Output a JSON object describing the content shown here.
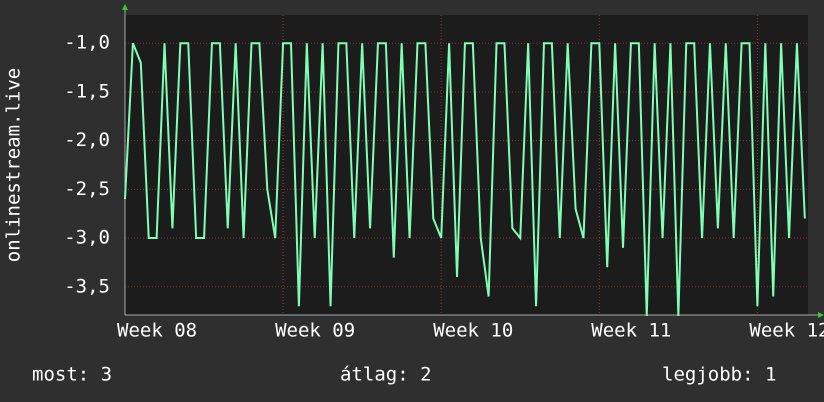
{
  "chart_data": {
    "type": "line",
    "y_label": "onlinestream.live",
    "x": [
      8,
      8.05,
      8.1,
      8.15,
      8.2,
      8.25,
      8.3,
      8.35,
      8.4,
      8.45,
      8.5,
      8.55,
      8.6,
      8.65,
      8.7,
      8.75,
      8.8,
      8.85,
      8.9,
      8.95,
      9,
      9.05,
      9.1,
      9.15,
      9.2,
      9.25,
      9.3,
      9.35,
      9.4,
      9.45,
      9.5,
      9.55,
      9.6,
      9.65,
      9.7,
      9.75,
      9.8,
      9.85,
      9.9,
      9.95,
      10,
      10.05,
      10.1,
      10.15,
      10.2,
      10.25,
      10.3,
      10.35,
      10.4,
      10.45,
      10.5,
      10.55,
      10.6,
      10.65,
      10.7,
      10.75,
      10.8,
      10.85,
      10.9,
      10.95,
      11,
      11.05,
      11.1,
      11.15,
      11.2,
      11.25,
      11.3,
      11.35,
      11.4,
      11.45,
      11.5,
      11.55,
      11.6,
      11.65,
      11.7,
      11.75,
      11.8,
      11.85,
      11.9,
      11.95,
      12,
      12.05,
      12.1,
      12.15,
      12.2,
      12.25,
      12.3
    ],
    "series": [
      {
        "color": "#80ffb4",
        "values": [
          -2.6,
          -1,
          -1.2,
          -3,
          -3,
          -1,
          -2.9,
          -1,
          -1,
          -3,
          -3,
          -1,
          -1,
          -2.9,
          -1,
          -3,
          -1,
          -1,
          -2.5,
          -3,
          -1,
          -1,
          -3.7,
          -1,
          -3,
          -1,
          -3.7,
          -1,
          -1,
          -3,
          -1,
          -2.9,
          -1,
          -1,
          -3.2,
          -1,
          -3,
          -1,
          -1,
          -2.8,
          -3,
          -1,
          -3.4,
          -1,
          -1,
          -3,
          -3.6,
          -1,
          -1,
          -2.9,
          -3,
          -1,
          -3.7,
          -1,
          -1,
          -3,
          -1,
          -2.7,
          -3,
          -1,
          -1,
          -3.3,
          -1,
          -3.1,
          -1,
          -1,
          -3.8,
          -1,
          -3,
          -1,
          -3.8,
          -1,
          -1,
          -3,
          -1,
          -2.9,
          -1,
          -3,
          -1,
          -1,
          -3.7,
          -1,
          -3.6,
          -1,
          -3,
          -1,
          -2.8
        ]
      }
    ],
    "xlim": [
      8,
      12.32
    ],
    "xticks": [
      {
        "value": 8,
        "label": "Week 08"
      },
      {
        "value": 9,
        "label": "Week 09"
      },
      {
        "value": 10,
        "label": "Week 10"
      },
      {
        "value": 11,
        "label": "Week 11"
      },
      {
        "value": 12,
        "label": "Week 12"
      }
    ],
    "ylim": [
      -3.79,
      -0.71
    ],
    "yticks": [
      {
        "value": -1,
        "label": "-1,0"
      },
      {
        "value": -1.5,
        "label": "-1,5"
      },
      {
        "value": -2,
        "label": "-2,0"
      },
      {
        "value": -2.5,
        "label": "-2,5"
      },
      {
        "value": -3,
        "label": "-3,0"
      },
      {
        "value": -3.5,
        "label": "-3,5"
      }
    ],
    "grid": true,
    "legend_items": [
      "most: 3",
      "átlag: 2",
      "legjobb: 1"
    ]
  }
}
